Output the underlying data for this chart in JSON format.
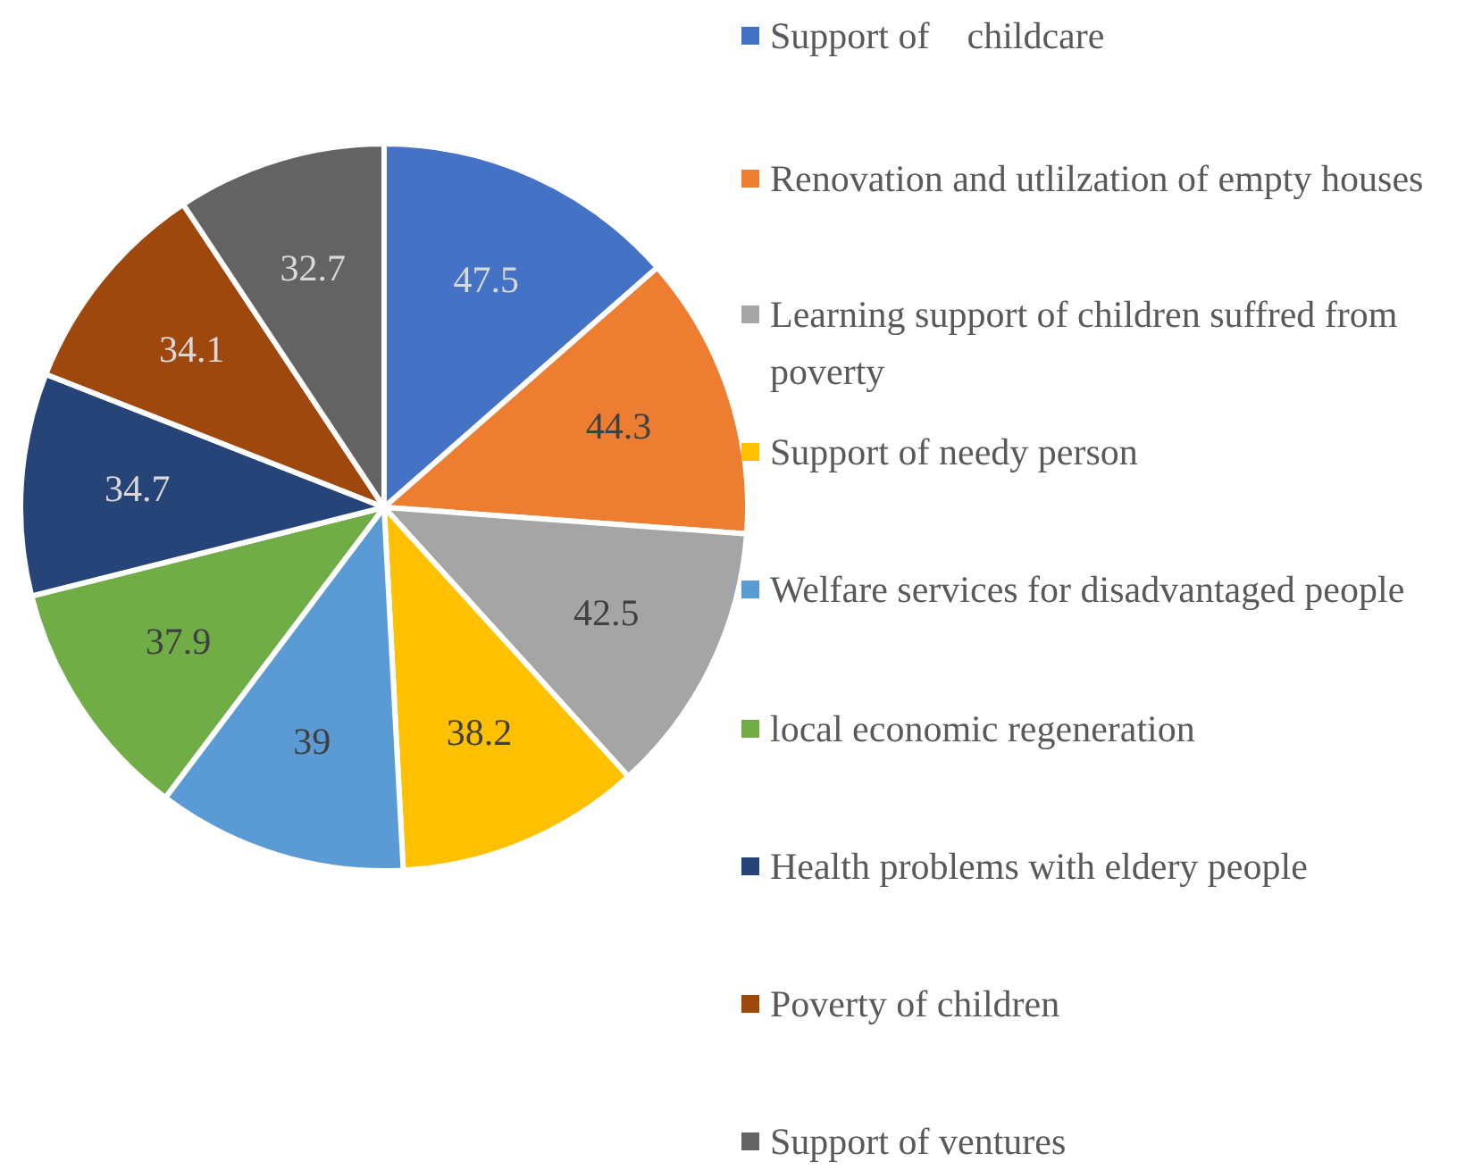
{
  "chart_data": {
    "type": "pie",
    "categories": [
      "Support of　childcare",
      "Renovation and utlilzation of empty houses",
      "Learning support of children suffred from poverty",
      "Support of needy person",
      "Welfare services for disadvantaged people",
      "local economic regeneration",
      "Health problems with eldery people",
      "Poverty of children",
      "Support of ventures"
    ],
    "values": [
      47.5,
      44.3,
      42.5,
      38.2,
      39,
      37.9,
      34.7,
      34.1,
      32.7
    ],
    "colors": [
      "#4472c4",
      "#ed7d31",
      "#a5a5a5",
      "#ffc000",
      "#5b9bd5",
      "#70ad47",
      "#264478",
      "#9e480e",
      "#636363"
    ],
    "data_labels": true,
    "legend": "right"
  }
}
